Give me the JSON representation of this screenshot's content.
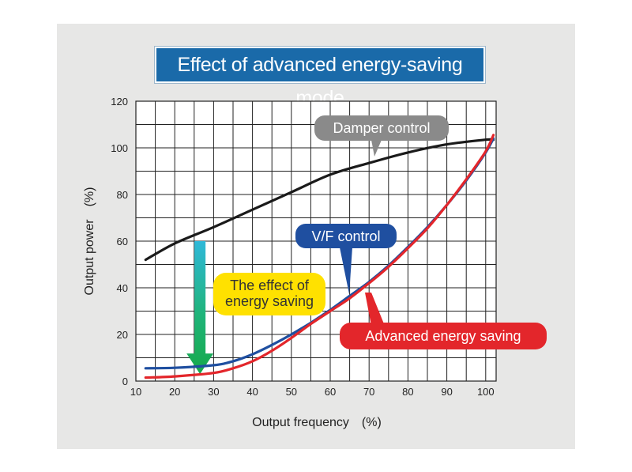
{
  "chart_data": {
    "type": "line",
    "title": "Effect of advanced energy-saving mode",
    "xlabel": "Output frequency　(%)",
    "ylabel": "Output power　(%)",
    "xlim": [
      10,
      103
    ],
    "ylim": [
      0,
      120
    ],
    "x_ticks": [
      10,
      20,
      30,
      40,
      50,
      60,
      70,
      80,
      90,
      100
    ],
    "y_ticks": [
      0,
      20,
      40,
      60,
      80,
      100,
      120
    ],
    "grid": true,
    "series": [
      {
        "name": "Damper control",
        "color": "#1a1a1a",
        "points": [
          [
            12.5,
            52
          ],
          [
            20,
            59
          ],
          [
            30,
            66
          ],
          [
            40,
            73.5
          ],
          [
            50,
            81
          ],
          [
            60,
            88.5
          ],
          [
            70,
            93.5
          ],
          [
            80,
            98
          ],
          [
            90,
            101.5
          ],
          [
            100,
            103.5
          ],
          [
            102,
            103.5
          ]
        ]
      },
      {
        "name": "V/F control",
        "color": "#1f4fa0",
        "points": [
          [
            12.5,
            5.5
          ],
          [
            20,
            5.7
          ],
          [
            30,
            6.8
          ],
          [
            35,
            8.5
          ],
          [
            40,
            11.5
          ],
          [
            45,
            15.5
          ],
          [
            50,
            20
          ],
          [
            55,
            25
          ],
          [
            60,
            30.5
          ],
          [
            65,
            36.5
          ],
          [
            70,
            42.5
          ],
          [
            75,
            49.5
          ],
          [
            80,
            57.5
          ],
          [
            85,
            66
          ],
          [
            90,
            75.5
          ],
          [
            95,
            86
          ],
          [
            100,
            98
          ],
          [
            102,
            104
          ]
        ]
      },
      {
        "name": "Advanced energy saving",
        "color": "#e3262b",
        "points": [
          [
            12.5,
            1.5
          ],
          [
            20,
            2
          ],
          [
            30,
            3.5
          ],
          [
            35,
            5.5
          ],
          [
            40,
            8.5
          ],
          [
            45,
            13
          ],
          [
            50,
            18.5
          ],
          [
            55,
            24.5
          ],
          [
            60,
            30
          ],
          [
            65,
            35.5
          ],
          [
            70,
            42
          ],
          [
            75,
            49
          ],
          [
            80,
            57
          ],
          [
            85,
            65.5
          ],
          [
            90,
            75.5
          ],
          [
            95,
            86.5
          ],
          [
            100,
            98.5
          ],
          [
            102,
            105.5
          ]
        ]
      }
    ],
    "annotations": [
      {
        "text_lines": [
          "Damper control"
        ],
        "style": "gray-callout"
      },
      {
        "text_lines": [
          "V/F control"
        ],
        "style": "blue-callout"
      },
      {
        "text_lines": [
          "The effect of",
          "energy saving"
        ],
        "style": "yellow-callout"
      },
      {
        "text_lines": [
          "Advanced energy saving"
        ],
        "style": "red-callout"
      }
    ],
    "arrow": {
      "from_y": 60,
      "to_y": 3,
      "at_x": 26.5
    }
  },
  "colors": {
    "panel_background": "#e7e7e6",
    "title_background": "#1a6aa9",
    "damper": "#1a1a1a",
    "vf": "#1f4fa0",
    "advanced": "#e3262b",
    "damper_callout": "#8a8a8a",
    "vf_callout": "#1f4fa0",
    "effect_callout": "#ffe100",
    "advanced_callout": "#e3262b"
  },
  "labels": {
    "title": "Effect of advanced energy-saving mode",
    "damper_callout": "Damper control",
    "vf_callout": "V/F control",
    "effect_line1": "The effect of",
    "effect_line2": "energy saving",
    "advanced_callout": "Advanced energy saving",
    "xlabel": "Output frequency　(%)",
    "ylabel": "Output power　(%)"
  }
}
